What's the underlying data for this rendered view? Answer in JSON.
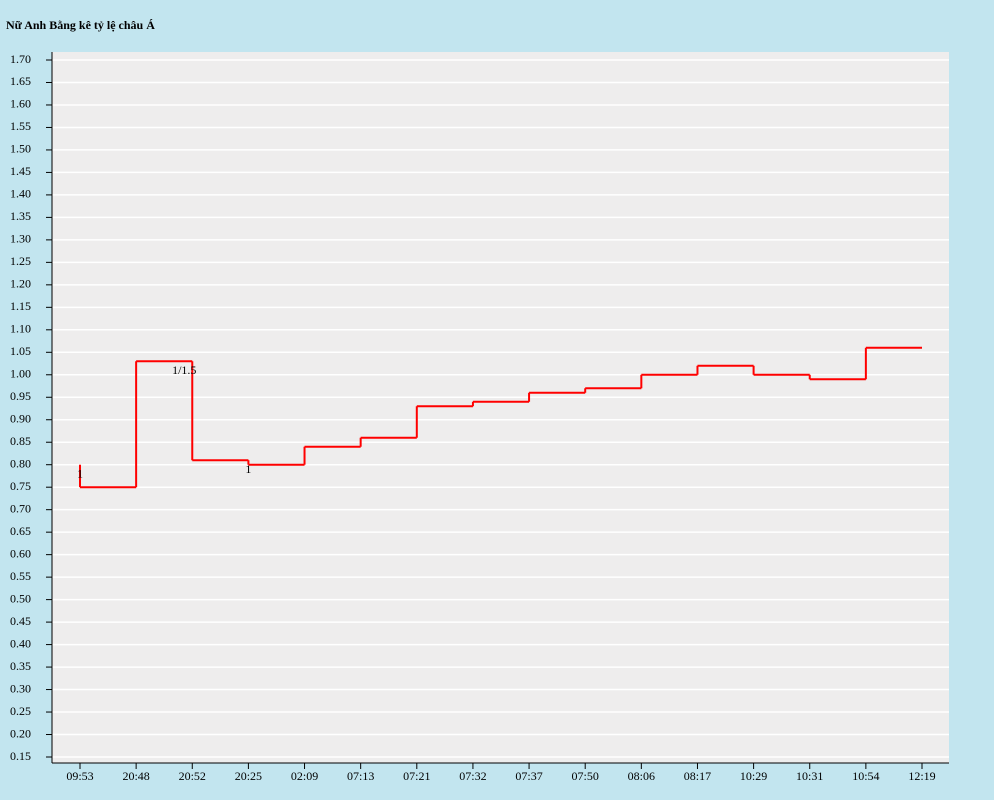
{
  "chart_data": {
    "type": "step-line",
    "title": "Nữ Anh Bằng kê tỷ lệ châu Á",
    "categories": [
      "09:53",
      "20:48",
      "20:52",
      "20:25",
      "02:09",
      "07:13",
      "07:21",
      "07:32",
      "07:37",
      "07:50",
      "08:06",
      "08:17",
      "10:29",
      "10:31",
      "10:54",
      "12:19"
    ],
    "series": [
      {
        "color": "#ff0000",
        "values": [
          0.8,
          0.75,
          1.03,
          0.81,
          0.8,
          0.84,
          0.86,
          0.93,
          0.94,
          0.96,
          0.97,
          1.0,
          1.02,
          1.0,
          0.99,
          1.06
        ],
        "point_labels": [
          "1",
          null,
          "1/1.5",
          "1",
          null,
          null,
          null,
          null,
          null,
          null,
          null,
          null,
          null,
          null,
          null,
          null
        ]
      }
    ],
    "ylim": [
      0.15,
      1.7
    ],
    "yticks": [
      0.15,
      {
        "value": 0.2,
        "label": "0.20"
      },
      0.25,
      {
        "value": 0.3,
        "label": "0.30"
      },
      0.35,
      {
        "value": 0.4,
        "label": "0.40"
      },
      0.45,
      {
        "value": 0.5,
        "label": "0.50"
      },
      0.55,
      {
        "value": 0.6,
        "label": "0.60"
      },
      0.65,
      {
        "value": 0.7,
        "label": "0.70"
      },
      0.75,
      {
        "value": 0.8,
        "label": "0.80"
      },
      0.85,
      {
        "value": 0.9,
        "label": "0.90"
      },
      0.95,
      {
        "value": 1.0,
        "label": "1.00"
      },
      1.05,
      {
        "value": 1.1,
        "label": "1.10"
      },
      1.15,
      {
        "value": 1.2,
        "label": "1.20"
      },
      1.25,
      {
        "value": 1.3,
        "label": "1.30"
      },
      1.35,
      {
        "value": 1.4,
        "label": "1.40"
      },
      1.45,
      {
        "value": 1.5,
        "label": "1.50"
      },
      1.55,
      {
        "value": 1.6,
        "label": "1.60"
      },
      1.65,
      {
        "value": 1.7,
        "label": "1.70"
      }
    ],
    "grid": true
  }
}
